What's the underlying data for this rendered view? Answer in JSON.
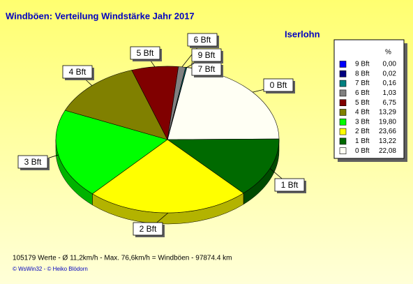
{
  "chart_data": {
    "type": "pie",
    "title": "Windböen: Verteilung Windstärke  Jahr 2017",
    "subtitle": "Iserlohn",
    "legend_header": "%",
    "categories": [
      "0 Bft",
      "1 Bft",
      "2 Bft",
      "3 Bft",
      "4 Bft",
      "5 Bft",
      "6 Bft",
      "7 Bft",
      "8 Bft",
      "9 Bft"
    ],
    "values": [
      22.08,
      13.22,
      23.66,
      19.8,
      13.29,
      6.75,
      1.03,
      0.16,
      0.02,
      0.0
    ],
    "value_labels": [
      "22,08",
      "13,22",
      "23,66",
      "19,80",
      "13,29",
      "6,75",
      "1,03",
      "0,16",
      "0,02",
      "0,00"
    ],
    "colors": [
      "#fffff4",
      "#006a00",
      "#ffff00",
      "#00ff00",
      "#808000",
      "#800000",
      "#808080",
      "#008080",
      "#000080",
      "#0000ff"
    ],
    "footer": "105179 Werte   -   Ø 11,2km/h  -  Max. 76,6km/h = Windböen   -    97874.4 km",
    "credit": "© WsWin32  - © Heiko Blödorn"
  }
}
